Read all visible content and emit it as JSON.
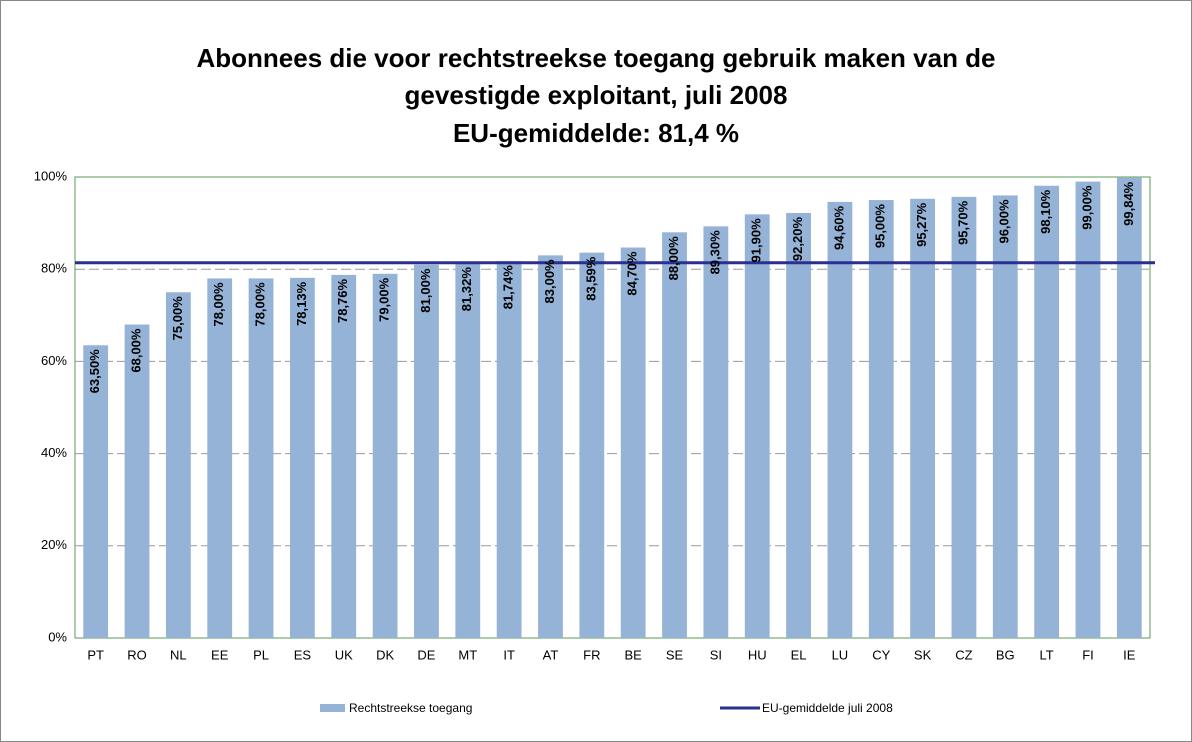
{
  "chart_data": {
    "type": "bar",
    "title": [
      "Abonnees die voor rechtstreekse toegang gebruik maken van de",
      "gevestigde exploitant, juli 2008"
    ],
    "subtitle": "EU-gemiddelde: 81,4 %",
    "categories": [
      "PT",
      "RO",
      "NL",
      "EE",
      "PL",
      "ES",
      "UK",
      "DK",
      "DE",
      "MT",
      "IT",
      "AT",
      "FR",
      "BE",
      "SE",
      "SI",
      "HU",
      "EL",
      "LU",
      "CY",
      "SK",
      "CZ",
      "BG",
      "LT",
      "FI",
      "IE"
    ],
    "series": [
      {
        "name": "Rechtstreekse toegang",
        "color": "#95b3d7",
        "values": [
          63.5,
          68,
          75,
          78,
          78,
          78.13,
          78.76,
          79,
          81,
          81.32,
          81.74,
          83,
          83.59,
          84.7,
          88,
          89.3,
          91.9,
          92.2,
          94.6,
          95,
          95.27,
          95.7,
          96,
          98.1,
          99,
          99.84
        ],
        "value_labels": [
          "63,50%",
          "68,00%",
          "75,00%",
          "78,00%",
          "78,00%",
          "78,13%",
          "78,76%",
          "79,00%",
          "81,00%",
          "81,32%",
          "81,74%",
          "83,00%",
          "83,59%",
          "84,70%",
          "88,00%",
          "89,30%",
          "91,90%",
          "92,20%",
          "94,60%",
          "95,00%",
          "95,27%",
          "95,70%",
          "96,00%",
          "98,10%",
          "99,00%",
          "99,84%"
        ]
      }
    ],
    "reference_line": {
      "name": "EU-gemiddelde juli 2008",
      "value": 81.4,
      "color": "#2b2f8f"
    },
    "ylim": [
      0,
      100
    ],
    "yticks": [
      {
        "value": 0,
        "label": "0%"
      },
      {
        "value": 20,
        "label": "20%"
      },
      {
        "value": 40,
        "label": "40%"
      },
      {
        "value": 60,
        "label": "60%"
      },
      {
        "value": 80,
        "label": "80%"
      },
      {
        "value": 100,
        "label": "100%"
      }
    ],
    "grid": true
  }
}
